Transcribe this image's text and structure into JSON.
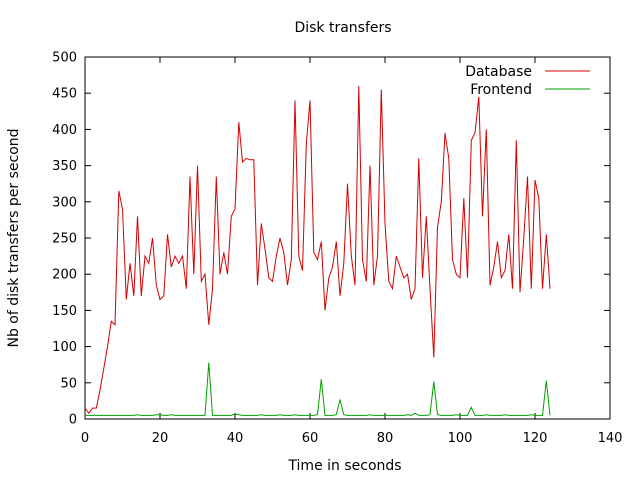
{
  "chart_data": {
    "type": "line",
    "title": "Disk transfers",
    "xlabel": "Time in seconds",
    "ylabel": "Nb of disk transfers per second",
    "xlim": [
      0,
      140
    ],
    "ylim": [
      0,
      500
    ],
    "xticks": [
      0,
      20,
      40,
      60,
      80,
      100,
      120,
      140
    ],
    "yticks": [
      0,
      50,
      100,
      150,
      200,
      250,
      300,
      350,
      400,
      450,
      500
    ],
    "grid": false,
    "legend_position": "top-right",
    "series": [
      {
        "name": "Database",
        "color": "#d40000",
        "x": [
          0,
          1,
          2,
          3,
          4,
          5,
          6,
          7,
          8,
          9,
          10,
          11,
          12,
          13,
          14,
          15,
          16,
          17,
          18,
          19,
          20,
          21,
          22,
          23,
          24,
          25,
          26,
          27,
          28,
          29,
          30,
          31,
          32,
          33,
          34,
          35,
          36,
          37,
          38,
          39,
          40,
          41,
          42,
          43,
          44,
          45,
          46,
          47,
          48,
          49,
          50,
          51,
          52,
          53,
          54,
          55,
          56,
          57,
          58,
          59,
          60,
          61,
          62,
          63,
          64,
          65,
          66,
          67,
          68,
          69,
          70,
          71,
          72,
          73,
          74,
          75,
          76,
          77,
          78,
          79,
          80,
          81,
          82,
          83,
          84,
          85,
          86,
          87,
          88,
          89,
          90,
          91,
          92,
          93,
          94,
          95,
          96,
          97,
          98,
          99,
          100,
          101,
          102,
          103,
          104,
          105,
          106,
          107,
          108,
          109,
          110,
          111,
          112,
          113,
          114,
          115,
          116,
          117,
          118,
          119,
          120,
          121,
          122,
          123,
          124
        ],
        "y": [
          15,
          8,
          15,
          15,
          40,
          70,
          100,
          135,
          130,
          315,
          290,
          165,
          215,
          170,
          280,
          170,
          225,
          215,
          250,
          185,
          165,
          170,
          255,
          210,
          225,
          215,
          225,
          180,
          335,
          200,
          350,
          190,
          200,
          130,
          180,
          335,
          200,
          230,
          200,
          280,
          290,
          410,
          355,
          360,
          358,
          358,
          185,
          270,
          235,
          195,
          190,
          225,
          250,
          230,
          185,
          220,
          440,
          225,
          205,
          380,
          440,
          230,
          220,
          245,
          150,
          195,
          210,
          245,
          170,
          215,
          325,
          225,
          185,
          460,
          220,
          190,
          350,
          185,
          225,
          455,
          270,
          190,
          180,
          225,
          210,
          195,
          200,
          165,
          180,
          360,
          195,
          280,
          180,
          85,
          265,
          300,
          395,
          360,
          220,
          200,
          195,
          305,
          195,
          385,
          395,
          445,
          280,
          400,
          185,
          210,
          245,
          195,
          205,
          255,
          180,
          385,
          175,
          250,
          335,
          180,
          330,
          305,
          180,
          255,
          180
        ]
      },
      {
        "name": "Frontend",
        "color": "#00a000",
        "x": [
          0,
          1,
          2,
          3,
          4,
          5,
          6,
          7,
          8,
          9,
          10,
          11,
          12,
          13,
          14,
          15,
          16,
          17,
          18,
          19,
          20,
          21,
          22,
          23,
          24,
          25,
          26,
          27,
          28,
          29,
          30,
          31,
          32,
          33,
          34,
          35,
          36,
          37,
          38,
          39,
          40,
          41,
          42,
          43,
          44,
          45,
          46,
          47,
          48,
          49,
          50,
          51,
          52,
          53,
          54,
          55,
          56,
          57,
          58,
          59,
          60,
          61,
          62,
          63,
          64,
          65,
          66,
          67,
          68,
          69,
          70,
          71,
          72,
          73,
          74,
          75,
          76,
          77,
          78,
          79,
          80,
          81,
          82,
          83,
          84,
          85,
          86,
          87,
          88,
          89,
          90,
          91,
          92,
          93,
          94,
          95,
          96,
          97,
          98,
          99,
          100,
          101,
          102,
          103,
          104,
          105,
          106,
          107,
          108,
          109,
          110,
          111,
          112,
          113,
          114,
          115,
          116,
          117,
          118,
          119,
          120,
          121,
          122,
          123,
          124
        ],
        "y": [
          5,
          5,
          5,
          5,
          5,
          5,
          5,
          5,
          5,
          5,
          5,
          5,
          5,
          5,
          6,
          5,
          5,
          5,
          5,
          6,
          6,
          5,
          5,
          6,
          5,
          5,
          5,
          5,
          5,
          5,
          5,
          5,
          5,
          78,
          5,
          5,
          5,
          5,
          5,
          5,
          7,
          6,
          5,
          5,
          5,
          5,
          5,
          6,
          5,
          5,
          5,
          5,
          6,
          5,
          5,
          5,
          6,
          5,
          5,
          5,
          5,
          5,
          6,
          55,
          5,
          5,
          5,
          6,
          27,
          6,
          5,
          5,
          5,
          5,
          5,
          5,
          6,
          5,
          5,
          5,
          5,
          5,
          5,
          5,
          5,
          5,
          6,
          5,
          8,
          5,
          5,
          5,
          6,
          52,
          6,
          5,
          5,
          5,
          5,
          6,
          5,
          5,
          5,
          16,
          5,
          5,
          5,
          6,
          5,
          5,
          5,
          5,
          6,
          5,
          5,
          5,
          5,
          5,
          5,
          6,
          5,
          5,
          5,
          53,
          5
        ]
      }
    ]
  }
}
